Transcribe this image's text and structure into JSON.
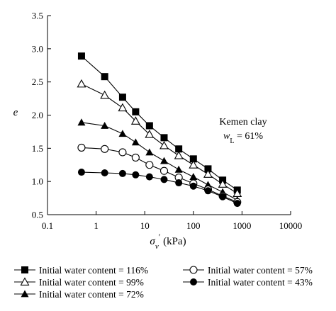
{
  "chart_data": {
    "type": "line",
    "xscale": "log",
    "xlim": [
      0.1,
      10000
    ],
    "ylim": [
      0.5,
      3.5
    ],
    "xticks": [
      "0.1",
      "1",
      "10",
      "100",
      "1000",
      "10000"
    ],
    "yticks": [
      "0.5",
      "1.0",
      "1.5",
      "2.0",
      "2.5",
      "3.0",
      "3.5"
    ],
    "ylabel": "e",
    "xlabel_symbol": "σ",
    "xlabel_sub": "v",
    "xlabel_prime": "′",
    "xlabel_unit": " (kPa)",
    "annotation": {
      "line1": "Kemen clay",
      "line2_symbol": "w",
      "line2_sub": "L",
      "line2_rest": " = 61%"
    },
    "x": [
      0.5,
      1.5,
      3.5,
      6.5,
      12.5,
      25,
      50,
      100,
      200,
      400,
      800
    ],
    "series": [
      {
        "name": "Initial water content = 116%",
        "marker": "filled-square",
        "values": [
          2.89,
          2.58,
          2.27,
          2.05,
          1.84,
          1.66,
          1.49,
          1.34,
          1.19,
          1.02,
          0.87
        ]
      },
      {
        "name": "Initial water content = 99%",
        "marker": "open-triangle",
        "values": [
          2.47,
          2.3,
          2.11,
          1.91,
          1.71,
          1.54,
          1.39,
          1.25,
          1.11,
          0.96,
          0.82
        ]
      },
      {
        "name": "Initial water content = 72%",
        "marker": "filled-triangle",
        "values": [
          1.89,
          1.84,
          1.72,
          1.59,
          1.44,
          1.31,
          1.18,
          1.07,
          0.95,
          0.84,
          0.72
        ]
      },
      {
        "name": "Initial water content = 57%",
        "marker": "open-circle",
        "values": [
          1.51,
          1.49,
          1.44,
          1.36,
          1.25,
          1.16,
          1.06,
          0.97,
          0.88,
          0.78,
          0.69
        ]
      },
      {
        "name": "Initial water content = 43%",
        "marker": "filled-circle",
        "values": [
          1.14,
          1.13,
          1.12,
          1.1,
          1.07,
          1.03,
          0.98,
          0.93,
          0.86,
          0.77,
          0.67
        ]
      }
    ],
    "legend_position": "bottom",
    "grid": false,
    "color": "#000000"
  }
}
